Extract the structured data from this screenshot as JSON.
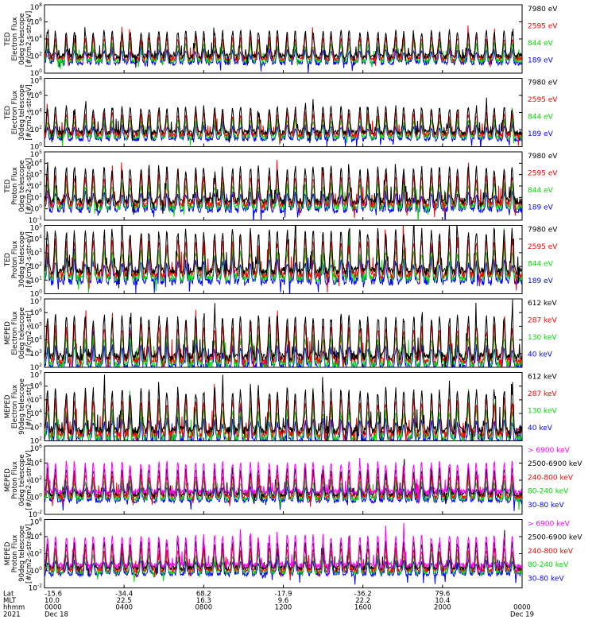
{
  "chart_data": {
    "type": "line",
    "x_range_hours": [
      0,
      24
    ],
    "panels": [
      {
        "ylabel": [
          "TED",
          "Electron Flux",
          "0deg telescope",
          "[#/cm2-s-str-eV]"
        ],
        "yticks": [
          "10^0",
          "10^2",
          "10^4",
          "10^6",
          "10^8"
        ],
        "ylim_log10": [
          0,
          8
        ],
        "baseline_log10": 1.6,
        "channels": [
          {
            "name": "7980 eV",
            "color": "#000000"
          },
          {
            "name": "2595 eV",
            "color": "#ff0000"
          },
          {
            "name": "844 eV",
            "color": "#00dd00"
          },
          {
            "name": "189 eV",
            "color": "#0000ff"
          }
        ]
      },
      {
        "ylabel": [
          "TED",
          "Electron Flux",
          "30deg telescope",
          "[#/cm2-s-str-eV]"
        ],
        "yticks": [
          "10^0",
          "10^2",
          "10^4",
          "10^6",
          "10^8"
        ],
        "ylim_log10": [
          0,
          8
        ],
        "baseline_log10": 1.3,
        "channels": [
          {
            "name": "7980 eV",
            "color": "#000000"
          },
          {
            "name": "2595 eV",
            "color": "#ff0000"
          },
          {
            "name": "844 eV",
            "color": "#00dd00"
          },
          {
            "name": "189 eV",
            "color": "#0000ff"
          }
        ]
      },
      {
        "ylabel": [
          "TED",
          "Proton Flux",
          "0deg telescope",
          "[#/cm2-s-str-eV]"
        ],
        "yticks": [
          "10^-1",
          "10^0",
          "10^1",
          "10^2",
          "10^3",
          "10^4",
          "10^5"
        ],
        "ylim_log10": [
          -1,
          5
        ],
        "baseline_log10": 0.3,
        "channels": [
          {
            "name": "7980 eV",
            "color": "#000000"
          },
          {
            "name": "2595 eV",
            "color": "#ff0000"
          },
          {
            "name": "844 eV",
            "color": "#00dd00"
          },
          {
            "name": "189 eV",
            "color": "#0000ff"
          }
        ]
      },
      {
        "ylabel": [
          "TED",
          "Proton Flux",
          "30deg telescope",
          "[#/cm2-s-str-eV]"
        ],
        "yticks": [
          "10^0",
          "10^1",
          "10^2",
          "10^3",
          "10^4",
          "10^5"
        ],
        "ylim_log10": [
          0,
          5
        ],
        "baseline_log10": 1.3,
        "channels": [
          {
            "name": "7980 eV",
            "color": "#000000"
          },
          {
            "name": "2595 eV",
            "color": "#ff0000"
          },
          {
            "name": "844 eV",
            "color": "#00dd00"
          },
          {
            "name": "189 eV",
            "color": "#0000ff"
          }
        ]
      },
      {
        "ylabel": [
          "MEPED",
          "Electron Flux",
          "0deg telescope",
          "[#/cm2-s-str]"
        ],
        "yticks": [
          "10^2",
          "10^3",
          "10^4",
          "10^5",
          "10^6",
          "10^7"
        ],
        "ylim_log10": [
          2,
          7
        ],
        "baseline_log10": 2.4,
        "channels": [
          {
            "name": "612 keV",
            "color": "#000000"
          },
          {
            "name": "287 keV",
            "color": "#ff0000"
          },
          {
            "name": "130 keV",
            "color": "#00dd00"
          },
          {
            "name": "40 keV",
            "color": "#0000ff"
          }
        ]
      },
      {
        "ylabel": [
          "MEPED",
          "Electron Flux",
          "90deg telescope",
          "[#/cm2-s-str]"
        ],
        "yticks": [
          "10^2",
          "10^3",
          "10^4",
          "10^5",
          "10^6",
          "10^7"
        ],
        "ylim_log10": [
          2,
          7
        ],
        "baseline_log10": 2.4,
        "channels": [
          {
            "name": "612 keV",
            "color": "#000000"
          },
          {
            "name": "287 keV",
            "color": "#ff0000"
          },
          {
            "name": "130 keV",
            "color": "#00dd00"
          },
          {
            "name": "40 keV",
            "color": "#0000ff"
          }
        ]
      },
      {
        "ylabel": [
          "MEPED",
          "Proton Flux",
          "0deg telescope",
          "[#/cm2-s-str-keV]"
        ],
        "yticks": [
          "10^-2",
          "10^0",
          "10^2",
          "10^4",
          "10^6"
        ],
        "ylim_log10": [
          -2,
          6
        ],
        "baseline_log10": 0.0,
        "channels": [
          {
            "name": "> 6900 keV",
            "color": "#ff00ff"
          },
          {
            "name": "2500-6900 keV",
            "color": "#000000"
          },
          {
            "name": "240-800 keV",
            "color": "#ff0000"
          },
          {
            "name": "80-240 keV",
            "color": "#00dd00"
          },
          {
            "name": "30-80 keV",
            "color": "#0000ff"
          }
        ]
      },
      {
        "ylabel": [
          "MEPED",
          "Proton Flux",
          "90deg telescope",
          "[#/cm2-s-str-keV]"
        ],
        "yticks": [
          "10^-2",
          "10^0",
          "10^2",
          "10^4",
          "10^6"
        ],
        "ylim_log10": [
          -2,
          6
        ],
        "baseline_log10": 0.0,
        "channels": [
          {
            "name": "> 6900 keV",
            "color": "#ff00ff"
          },
          {
            "name": "2500-6900 keV",
            "color": "#000000"
          },
          {
            "name": "240-800 keV",
            "color": "#ff0000"
          },
          {
            "name": "80-240 keV",
            "color": "#00dd00"
          },
          {
            "name": "30-80 keV",
            "color": "#0000ff"
          }
        ]
      }
    ],
    "x_axis": {
      "row_labels": [
        "Lat",
        "MLT",
        "hhmm",
        "2021"
      ],
      "ticks": [
        {
          "hour": 0,
          "lat": "-15.6",
          "mlt": "10.0",
          "hhmm": "0000",
          "date": "Dec 18"
        },
        {
          "hour": 4,
          "lat": "-34.4",
          "mlt": "22.5",
          "hhmm": "0400",
          "date": ""
        },
        {
          "hour": 8,
          "lat": "68.2",
          "mlt": "16.3",
          "hhmm": "0800",
          "date": ""
        },
        {
          "hour": 12,
          "lat": "-17.9",
          "mlt": "9.6",
          "hhmm": "1200",
          "date": ""
        },
        {
          "hour": 16,
          "lat": "-36.2",
          "mlt": "22.2",
          "hhmm": "1600",
          "date": ""
        },
        {
          "hour": 20,
          "lat": "79.6",
          "mlt": "10.4",
          "hhmm": "2000",
          "date": ""
        },
        {
          "hour": 24,
          "lat": "",
          "mlt": "",
          "hhmm": "0000",
          "date": "Dec 19"
        }
      ]
    },
    "pass_peak_hours": [
      0.15,
      0.55,
      1.1,
      1.5,
      2.05,
      2.45,
      3.0,
      3.4,
      3.9,
      4.3,
      4.85,
      5.25,
      5.75,
      6.15,
      6.7,
      7.1,
      7.6,
      8.0,
      8.55,
      8.95,
      9.45,
      9.85,
      10.35,
      10.75,
      11.3,
      11.7,
      12.2,
      12.6,
      13.1,
      13.5,
      14.0,
      14.4,
      14.9,
      15.3,
      15.85,
      16.25,
      16.75,
      17.15,
      17.65,
      18.05,
      18.55,
      18.95,
      19.45,
      19.85,
      20.35,
      20.75,
      21.3,
      21.7,
      22.2,
      22.6,
      23.1,
      23.5
    ]
  }
}
